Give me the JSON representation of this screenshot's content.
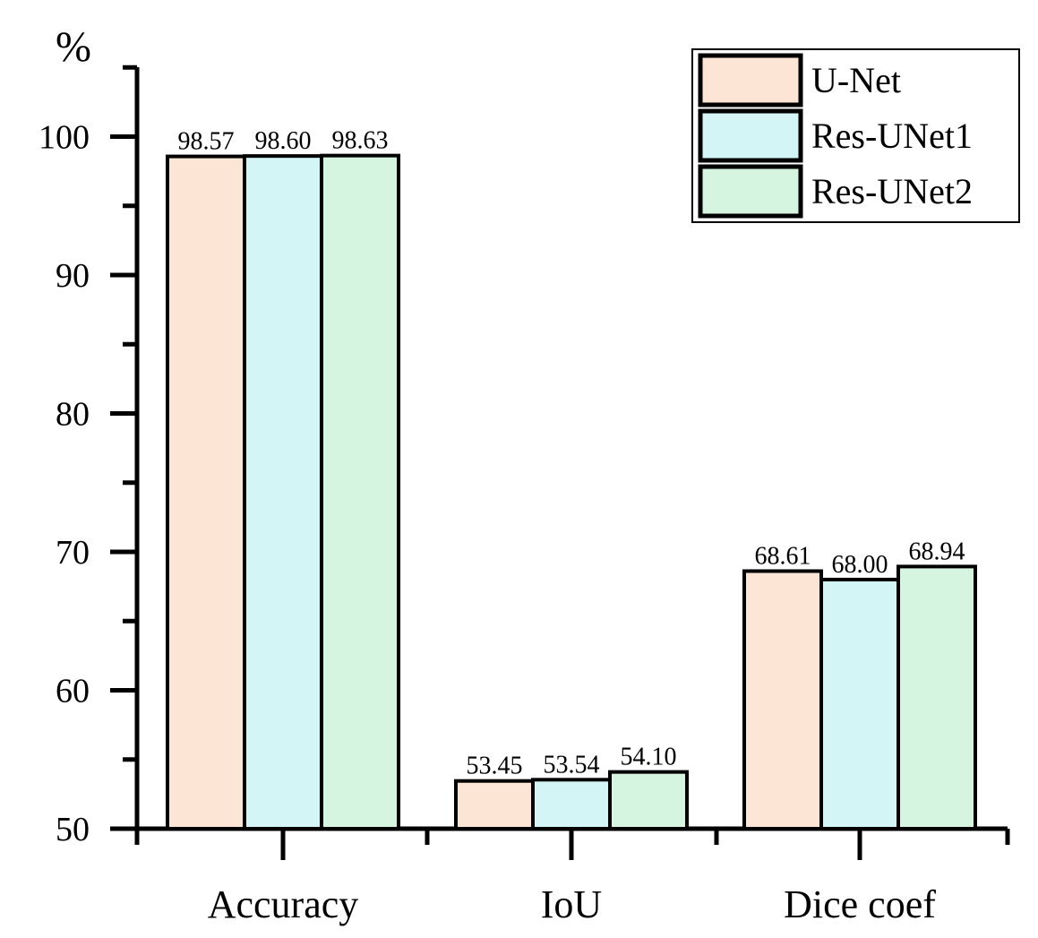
{
  "chart_data": {
    "type": "bar",
    "title": "",
    "xlabel": "",
    "ylabel": "%",
    "ylim": [
      50,
      105
    ],
    "yticks": [
      50,
      60,
      70,
      80,
      90,
      100
    ],
    "categories": [
      "Accuracy",
      "IoU",
      "Dice coef"
    ],
    "series": [
      {
        "name": "U-Net",
        "color": "#fde5d6",
        "values": [
          98.57,
          53.45,
          68.61
        ],
        "labels": [
          "98.57",
          "53.45",
          "68.61"
        ]
      },
      {
        "name": "Res-UNet1",
        "color": "#d4f5f5",
        "values": [
          98.6,
          53.54,
          68.0
        ],
        "labels": [
          "98.60",
          "53.54",
          "68.00"
        ]
      },
      {
        "name": "Res-UNet2",
        "color": "#d5f5e0",
        "values": [
          98.63,
          54.1,
          68.94
        ],
        "labels": [
          "98.63",
          "54.10",
          "68.94"
        ]
      }
    ],
    "legend": {
      "position": "top-right"
    },
    "grid": false
  }
}
